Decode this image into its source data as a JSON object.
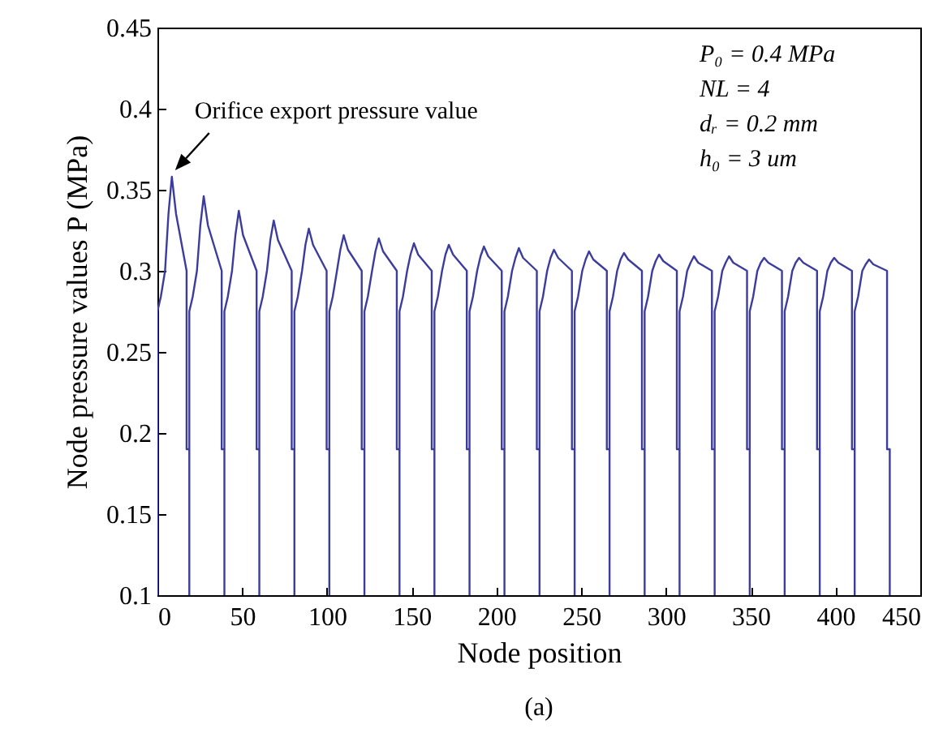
{
  "chart_data": {
    "type": "line",
    "xlabel": "Node position",
    "ylabel": "Node pressure values P (MPa)",
    "xlim": [
      0,
      450
    ],
    "xticks": [
      0,
      50,
      100,
      150,
      200,
      250,
      300,
      350,
      400,
      450
    ],
    "ylim": [
      0.1,
      0.45
    ],
    "yticks": [
      0.1,
      0.15,
      0.2,
      0.25,
      0.3,
      0.35,
      0.4,
      0.45
    ],
    "annotations": [
      {
        "text": "Orifice export pressure value",
        "x": 8.5,
        "y": 0.358
      },
      "P₀ = 0.4 MPa",
      "NL = 4",
      "dᵣ = 0.2 mm",
      "h₀ = 3 um",
      "(a)"
    ],
    "series": [
      {
        "color": "#3c3c9c",
        "x": [
          0,
          0,
          2,
          4.5,
          6.5,
          8.5,
          11,
          17.2,
          17.2,
          18.8,
          18.8,
          18.8,
          20.8,
          23.3,
          25.3,
          27.3,
          29.8,
          37.9,
          37.9,
          39.5,
          39.5,
          39.5,
          41.5,
          44,
          46,
          48,
          50.5,
          58.5,
          58.5,
          60.1,
          60.1,
          60.1,
          62.1,
          64.6,
          66.6,
          68.6,
          71.1,
          79.2,
          79.2,
          80.8,
          80.8,
          80.8,
          82.8,
          85.3,
          87.3,
          89.3,
          91.8,
          99.8,
          99.8,
          101.4,
          101.4,
          101.4,
          103.4,
          105.9,
          107.9,
          109.9,
          112.4,
          120.5,
          120.5,
          122.1,
          122.1,
          122.1,
          124.1,
          126.6,
          128.6,
          130.6,
          133.1,
          141.2,
          141.2,
          142.8,
          142.8,
          142.8,
          144.8,
          147.3,
          149.3,
          151.3,
          153.8,
          161.8,
          161.8,
          163.4,
          163.4,
          163.4,
          165.4,
          167.9,
          169.9,
          171.9,
          174.4,
          182.5,
          182.5,
          184.1,
          184.1,
          184.1,
          186.1,
          188.6,
          190.6,
          192.6,
          195.1,
          203.1,
          203.1,
          204.7,
          204.7,
          204.7,
          206.7,
          209.2,
          211.2,
          213.2,
          215.7,
          223.8,
          223.8,
          225.4,
          225.4,
          225.4,
          227.4,
          229.9,
          231.9,
          233.9,
          236.4,
          244.5,
          244.5,
          246.1,
          246.1,
          246.1,
          248.1,
          250.6,
          252.6,
          254.6,
          257.1,
          265.1,
          265.1,
          266.7,
          266.7,
          266.7,
          268.7,
          271.2,
          273.2,
          275.2,
          277.7,
          285.8,
          285.8,
          287.4,
          287.4,
          287.4,
          289.4,
          291.9,
          293.9,
          295.9,
          298.4,
          306.4,
          306.4,
          308,
          308,
          308,
          310,
          312.5,
          314.5,
          316.5,
          319,
          327.1,
          327.1,
          328.7,
          328.7,
          328.7,
          330.7,
          333.2,
          335.2,
          337.2,
          339.7,
          347.8,
          347.8,
          349.4,
          349.4,
          349.4,
          351.4,
          353.9,
          355.9,
          357.9,
          360.4,
          368.4,
          368.4,
          370,
          370,
          370,
          372,
          374.5,
          376.5,
          378.5,
          381,
          389.1,
          389.1,
          390.7,
          390.7,
          390.7,
          392.7,
          395.2,
          397.2,
          399.2,
          401.7,
          409.7,
          409.7,
          411.3,
          411.3,
          411.3,
          413.3,
          415.8,
          417.8,
          419.8,
          422.3,
          430.4,
          430.4,
          432,
          432
        ],
        "values": [
          0.1,
          0.275,
          0.284,
          0.3,
          0.335,
          0.358,
          0.335,
          0.3,
          0.19,
          0.19,
          0.1,
          0.275,
          0.284,
          0.3,
          0.328,
          0.346,
          0.328,
          0.3,
          0.19,
          0.19,
          0.1,
          0.275,
          0.284,
          0.3,
          0.322,
          0.337,
          0.322,
          0.3,
          0.19,
          0.19,
          0.1,
          0.275,
          0.284,
          0.3,
          0.319,
          0.331,
          0.319,
          0.3,
          0.19,
          0.19,
          0.1,
          0.275,
          0.284,
          0.3,
          0.316,
          0.326,
          0.316,
          0.3,
          0.19,
          0.19,
          0.1,
          0.275,
          0.284,
          0.3,
          0.313,
          0.322,
          0.313,
          0.3,
          0.19,
          0.19,
          0.1,
          0.275,
          0.284,
          0.3,
          0.312,
          0.32,
          0.312,
          0.3,
          0.19,
          0.19,
          0.1,
          0.275,
          0.284,
          0.3,
          0.31,
          0.317,
          0.31,
          0.3,
          0.19,
          0.19,
          0.1,
          0.275,
          0.284,
          0.3,
          0.31,
          0.316,
          0.31,
          0.3,
          0.19,
          0.19,
          0.1,
          0.275,
          0.284,
          0.3,
          0.309,
          0.315,
          0.309,
          0.3,
          0.19,
          0.19,
          0.1,
          0.275,
          0.284,
          0.3,
          0.308,
          0.314,
          0.308,
          0.3,
          0.19,
          0.19,
          0.1,
          0.275,
          0.284,
          0.3,
          0.308,
          0.313,
          0.308,
          0.3,
          0.19,
          0.19,
          0.1,
          0.275,
          0.284,
          0.3,
          0.307,
          0.312,
          0.307,
          0.3,
          0.19,
          0.19,
          0.1,
          0.275,
          0.284,
          0.3,
          0.307,
          0.311,
          0.307,
          0.3,
          0.19,
          0.19,
          0.1,
          0.275,
          0.284,
          0.3,
          0.306,
          0.31,
          0.306,
          0.3,
          0.19,
          0.19,
          0.1,
          0.275,
          0.284,
          0.3,
          0.305,
          0.309,
          0.305,
          0.3,
          0.19,
          0.19,
          0.1,
          0.275,
          0.284,
          0.3,
          0.305,
          0.309,
          0.305,
          0.3,
          0.19,
          0.19,
          0.1,
          0.275,
          0.284,
          0.3,
          0.305,
          0.308,
          0.305,
          0.3,
          0.19,
          0.19,
          0.1,
          0.275,
          0.284,
          0.3,
          0.305,
          0.308,
          0.305,
          0.3,
          0.19,
          0.19,
          0.1,
          0.275,
          0.284,
          0.3,
          0.305,
          0.308,
          0.305,
          0.3,
          0.19,
          0.19,
          0.1,
          0.275,
          0.284,
          0.3,
          0.304,
          0.307,
          0.304,
          0.3,
          0.19,
          0.19,
          0.1
        ]
      }
    ]
  }
}
